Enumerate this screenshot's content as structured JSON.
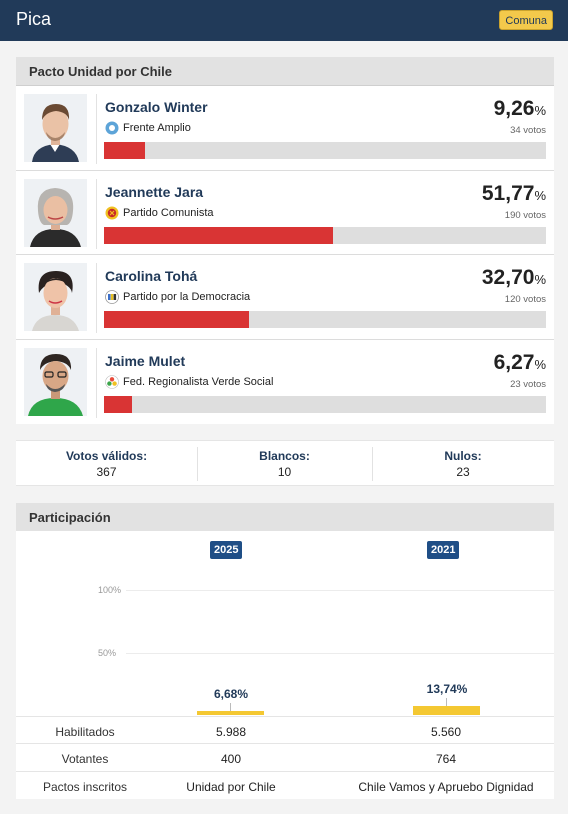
{
  "header": {
    "title": "Pica",
    "badge": "Comuna"
  },
  "pact_section": {
    "title": "Pacto Unidad por Chile"
  },
  "candidates": [
    {
      "name": "Gonzalo Winter",
      "party": "Frente Amplio",
      "pct": "9,26",
      "pct_symbol": "%",
      "votes": "34 votos",
      "share": 9.26
    },
    {
      "name": "Jeannette Jara",
      "party": "Partido Comunista",
      "pct": "51,77",
      "pct_symbol": "%",
      "votes": "190 votos",
      "share": 51.77
    },
    {
      "name": "Carolina Tohá",
      "party": "Partido por la Democracia",
      "pct": "32,70",
      "pct_symbol": "%",
      "votes": "120 votos",
      "share": 32.7
    },
    {
      "name": "Jaime Mulet",
      "party": "Fed. Regionalista Verde Social",
      "pct": "6,27",
      "pct_symbol": "%",
      "votes": "23 votos",
      "share": 6.27
    }
  ],
  "totals": {
    "valid_label": "Votos válidos:",
    "valid_value": "367",
    "blank_label": "Blancos:",
    "blank_value": "10",
    "null_label": "Nulos:",
    "null_value": "23"
  },
  "participation": {
    "title": "Participación",
    "year_a": "2025",
    "year_b": "2021",
    "grid_100": "100%",
    "grid_50": "50%",
    "pct_a_label": "6,68%",
    "pct_b_label": "13,74%",
    "rows": {
      "habilitados_label": "Habilitados",
      "habilitados_a": "5.988",
      "habilitados_b": "5.560",
      "votantes_label": "Votantes",
      "votantes_a": "400",
      "votantes_b": "764",
      "pactos_label": "Pactos inscritos",
      "pactos_a": "Unidad por Chile",
      "pactos_b": "Chile Vamos y Apruebo Dignidad"
    }
  },
  "chart_data": {
    "type": "bar",
    "categories": [
      "2025",
      "2021"
    ],
    "values": [
      6.68,
      13.74
    ],
    "ylim": [
      0,
      100
    ],
    "grid": true
  },
  "colors": {
    "header": "#213a59",
    "bar": "#d93434",
    "participation_bar": "#f4c832",
    "year_badge": "#1f4e86"
  }
}
